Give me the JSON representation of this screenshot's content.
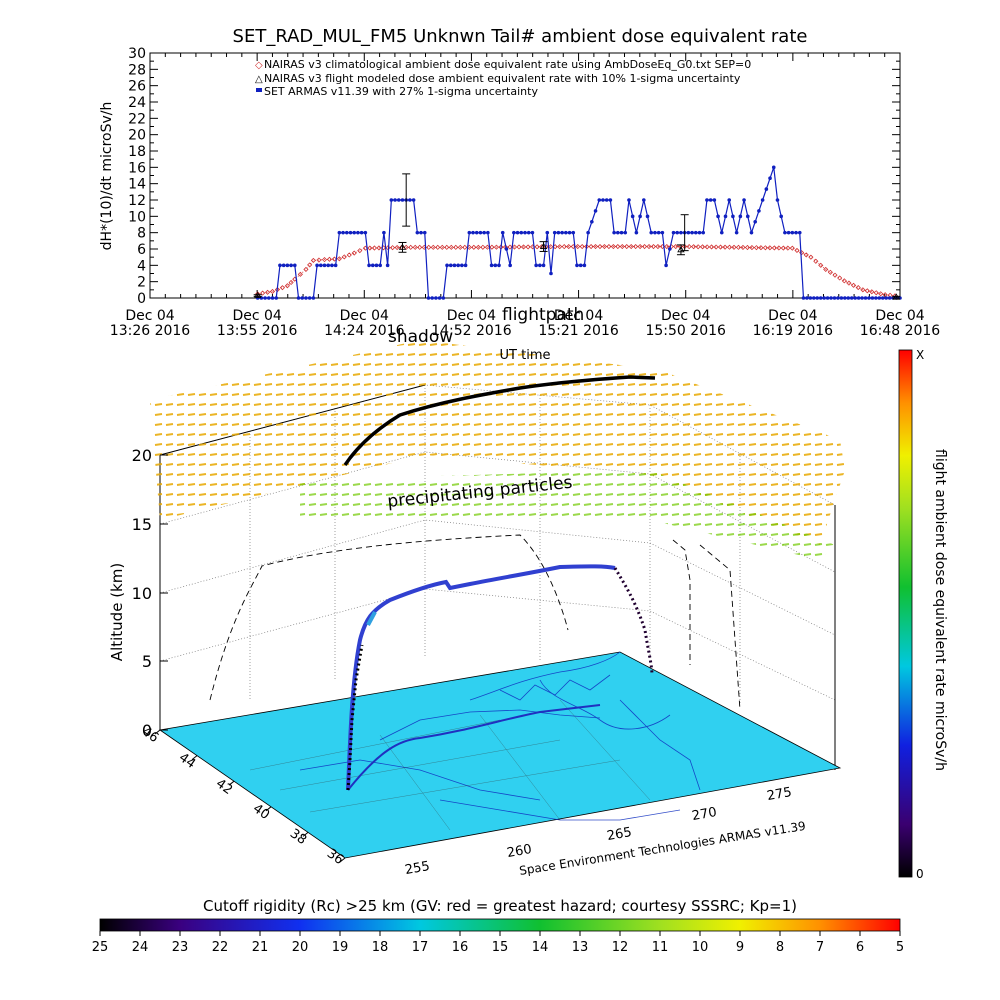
{
  "top_chart": {
    "title": "SET_RAD_MUL_FM5 Unknwn Tail#  ambient dose equivalent rate",
    "ylabel": "dH*(10)/dt microSv/h",
    "xlabel": "UT time",
    "legend": [
      "NAIRAS v3 climatological ambient dose equivalent rate using AmbDoseEq_G0.txt SEP=0",
      "NAIRAS v3 flight modeled dose ambient equivalent rate with 10% 1-sigma uncertainty",
      "SET ARMAS v11.39 with 27% 1-sigma uncertainty"
    ],
    "y_ticks": [
      "0",
      "2",
      "4",
      "6",
      "8",
      "10",
      "12",
      "14",
      "16",
      "18",
      "20",
      "22",
      "24",
      "26",
      "28",
      "30"
    ],
    "x_ticks": [
      {
        "date": "Dec 04",
        "time": "13:26 2016"
      },
      {
        "date": "Dec 04",
        "time": "13:55 2016"
      },
      {
        "date": "Dec 04",
        "time": "14:24 2016"
      },
      {
        "date": "Dec 04",
        "time": "14:52 2016"
      },
      {
        "date": "Dec 04",
        "time": "15:21 2016"
      },
      {
        "date": "Dec 04",
        "time": "15:50 2016"
      },
      {
        "date": "Dec 04",
        "time": "16:19 2016"
      },
      {
        "date": "Dec 04",
        "time": "16:48 2016"
      }
    ]
  },
  "scene": {
    "overlay_labels": [
      "shadow",
      "flightpath"
    ],
    "precipitating_label": "precipitating particles",
    "z_title": "Altitude (km)",
    "z_ticks": [
      "0",
      "5",
      "10",
      "15",
      "20"
    ],
    "lat_ticks": [
      "46",
      "44",
      "42",
      "40",
      "38",
      "36"
    ],
    "lon_ticks": [
      "255",
      "260",
      "265",
      "270",
      "275"
    ],
    "credit": "Space Environment Technologies ARMAS v11.39"
  },
  "colorbar_right": {
    "label": "flight ambient dose equivalent rate microSv/h",
    "top": "X",
    "bottom": "0"
  },
  "colorbar_bottom": {
    "title": "Cutoff rigidity (Rc) >25 km (GV: red = greatest hazard; courtesy SSSRC; Kp=1)",
    "ticks": [
      "25",
      "24",
      "23",
      "22",
      "21",
      "20",
      "19",
      "18",
      "17",
      "16",
      "15",
      "14",
      "13",
      "12",
      "11",
      "10",
      "9",
      "8",
      "7",
      "6",
      "5"
    ]
  },
  "chart_data": {
    "type": "line",
    "title": "SET_RAD_MUL_FM5 Unknwn Tail#  ambient dose equivalent rate",
    "xlabel": "UT time",
    "ylabel": "dH*(10)/dt microSv/h",
    "ylim": [
      0,
      30
    ],
    "xlim": [
      "13:26",
      "16:48"
    ],
    "series": [
      {
        "name": "NAIRAS v3 climatological ambient dose equivalent rate using AmbDoseEq_G0.txt SEP=0",
        "color": "#d03030",
        "points": [
          [
            "13:55",
            0.5
          ],
          [
            "13:59",
            0.8
          ],
          [
            "14:03",
            1.5
          ],
          [
            "14:05",
            2.3
          ],
          [
            "14:08",
            3.5
          ],
          [
            "14:10",
            4.6
          ],
          [
            "14:13",
            4.7
          ],
          [
            "14:17",
            4.8
          ],
          [
            "14:21",
            5.5
          ],
          [
            "14:24",
            6.1
          ],
          [
            "14:35",
            6.2
          ],
          [
            "14:52",
            6.2
          ],
          [
            "15:20",
            6.3
          ],
          [
            "15:50",
            6.3
          ],
          [
            "16:19",
            6.1
          ],
          [
            "16:24",
            5.0
          ],
          [
            "16:28",
            3.5
          ],
          [
            "16:33",
            2.1
          ],
          [
            "16:38",
            1.0
          ],
          [
            "16:44",
            0.4
          ],
          [
            "16:48",
            0.2
          ]
        ]
      },
      {
        "name": "NAIRAS v3 flight modeled dose ambient equivalent rate with 10% 1-sigma uncertainty",
        "color": "#000000",
        "points": [
          {
            "t": "13:55",
            "y": 0.3,
            "err": 0.1
          },
          {
            "t": "14:34",
            "y": 6.2,
            "err": 0.6
          },
          {
            "t": "15:12",
            "y": 6.3,
            "err": 0.6
          },
          {
            "t": "15:49",
            "y": 5.9,
            "err": 0.6
          },
          {
            "t": "16:47",
            "y": 0.1,
            "err": 0.1
          }
        ]
      },
      {
        "name": "SET ARMAS v11.39 with 27% 1-sigma uncertainty",
        "color": "#1020c0",
        "points": [
          [
            "13:55",
            0
          ],
          [
            "14:00",
            0
          ],
          [
            "14:01",
            4
          ],
          [
            "14:05",
            4
          ],
          [
            "14:06",
            0
          ],
          [
            "14:10",
            0
          ],
          [
            "14:11",
            4
          ],
          [
            "14:16",
            4
          ],
          [
            "14:17",
            8
          ],
          [
            "14:24",
            8
          ],
          [
            "14:25",
            4
          ],
          [
            "14:28",
            4
          ],
          [
            "14:29",
            8
          ],
          [
            "14:30",
            4
          ],
          [
            "14:31",
            12
          ],
          [
            "14:37",
            12
          ],
          [
            "14:38",
            8
          ],
          [
            "14:40",
            8
          ],
          [
            "14:41",
            0
          ],
          [
            "14:45",
            0
          ],
          [
            "14:46",
            4
          ],
          [
            "14:51",
            4
          ],
          [
            "14:52",
            8
          ],
          [
            "14:57",
            8
          ],
          [
            "14:58",
            4
          ],
          [
            "15:00",
            4
          ],
          [
            "15:01",
            8
          ],
          [
            "15:03",
            4
          ],
          [
            "15:04",
            8
          ],
          [
            "15:09",
            8
          ],
          [
            "15:10",
            4
          ],
          [
            "15:12",
            4
          ],
          [
            "15:13",
            8
          ],
          [
            "15:14",
            3
          ],
          [
            "15:15",
            8
          ],
          [
            "15:20",
            8
          ],
          [
            "15:21",
            4
          ],
          [
            "15:23",
            4
          ],
          [
            "15:24",
            8
          ],
          [
            "15:27",
            12
          ],
          [
            "15:30",
            12
          ],
          [
            "15:31",
            8
          ],
          [
            "15:34",
            8
          ],
          [
            "15:35",
            12
          ],
          [
            "15:37",
            8
          ],
          [
            "15:39",
            12
          ],
          [
            "15:41",
            8
          ],
          [
            "15:44",
            8
          ],
          [
            "15:45",
            4
          ],
          [
            "15:47",
            8
          ],
          [
            "15:55",
            8
          ],
          [
            "15:56",
            12
          ],
          [
            "15:58",
            12
          ],
          [
            "16:00",
            8
          ],
          [
            "16:02",
            12
          ],
          [
            "16:04",
            8
          ],
          [
            "16:06",
            12
          ],
          [
            "16:08",
            8
          ],
          [
            "16:11",
            12
          ],
          [
            "16:14",
            16
          ],
          [
            "16:15",
            12
          ],
          [
            "16:17",
            8
          ],
          [
            "16:21",
            8
          ],
          [
            "16:22",
            0
          ],
          [
            "16:48",
            0
          ]
        ]
      }
    ],
    "armas_error_bars": [
      {
        "t": "14:35",
        "y": 12,
        "err": 3.2
      },
      {
        "t": "15:50",
        "y": 8,
        "err": 2.2
      }
    ]
  }
}
